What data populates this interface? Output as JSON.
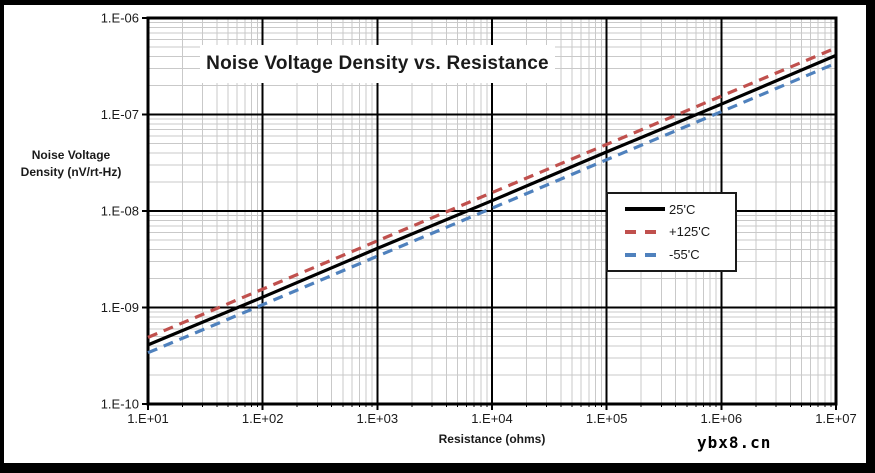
{
  "frame": {
    "border_color": "#000000",
    "background": "#ffffff"
  },
  "watermark": "ybx8.cn",
  "chart_data": {
    "type": "line",
    "title": "Noise Voltage Density vs. Resistance",
    "xlabel": "Resistance (ohms)",
    "ylabel_lines": [
      "Noise Voltage",
      "Density (nV/rt-Hz)"
    ],
    "x_scale": "log",
    "y_scale": "log",
    "xlim": [
      10.0,
      10000000.0
    ],
    "ylim": [
      1e-10,
      1e-06
    ],
    "grid": {
      "major": true,
      "minor": true,
      "major_color": "#000000",
      "minor_color": "#c9c9c9"
    },
    "legend_position": "middle-right",
    "x_ticks": [
      {
        "label": "1.E+01",
        "value": 10.0
      },
      {
        "label": "1.E+02",
        "value": 100.0
      },
      {
        "label": "1.E+03",
        "value": 1000.0
      },
      {
        "label": "1.E+04",
        "value": 10000.0
      },
      {
        "label": "1.E+05",
        "value": 100000.0
      },
      {
        "label": "1.E+06",
        "value": 1000000.0
      },
      {
        "label": "1.E+07",
        "value": 10000000.0
      }
    ],
    "y_ticks": [
      {
        "label": "1.E-06",
        "value": 1e-06
      },
      {
        "label": "1.E-07",
        "value": 1e-07
      },
      {
        "label": "1.E-08",
        "value": 1e-08
      },
      {
        "label": "1.E-09",
        "value": 1e-09
      },
      {
        "label": "1.E-10",
        "value": 1e-10
      }
    ],
    "x": [
      10.0,
      100.0,
      1000.0,
      10000.0,
      100000.0,
      1000000.0,
      10000000.0
    ],
    "series": [
      {
        "label": "25'C",
        "color": "#000000",
        "style": "solid",
        "values": [
          4.1e-10,
          1.28e-09,
          4.1e-09,
          1.28e-08,
          4.1e-08,
          1.28e-07,
          4.1e-07
        ]
      },
      {
        "label": "+125'C",
        "color": "#C0504D",
        "style": "dashed",
        "values": [
          4.9e-10,
          1.55e-09,
          4.9e-09,
          1.55e-08,
          4.9e-08,
          1.55e-07,
          4.9e-07
        ]
      },
      {
        "label": "-55'C",
        "color": "#4F81BD",
        "style": "dashed",
        "values": [
          3.4e-10,
          1.07e-09,
          3.4e-09,
          1.07e-08,
          3.4e-08,
          1.07e-07,
          3.4e-07
        ]
      }
    ]
  }
}
